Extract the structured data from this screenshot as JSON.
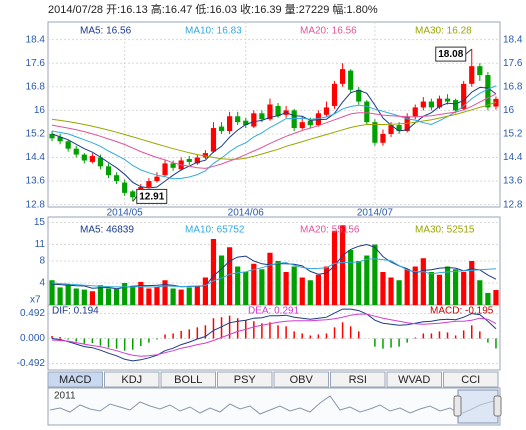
{
  "header": "2014/07/28 开:16.13 高:16.47 低:16.03 收:16.39 量:27229 幅:1.80%",
  "chart_data": [
    {
      "type": "candlestick",
      "categories": [
        null,
        null,
        null,
        null,
        null,
        null,
        null,
        null,
        null,
        "2014/05",
        null,
        null,
        null,
        null,
        null,
        null,
        null,
        null,
        null,
        null,
        null,
        null,
        null,
        null,
        "2014/06",
        null,
        null,
        null,
        null,
        null,
        null,
        null,
        null,
        null,
        null,
        null,
        null,
        null,
        null,
        null,
        "2014/07",
        null,
        null,
        null,
        null,
        null,
        null,
        null,
        null,
        null,
        null,
        null,
        null,
        null,
        null,
        null
      ],
      "open": [
        15.2,
        15.1,
        14.95,
        14.7,
        14.5,
        14.25,
        14.4,
        14.1,
        13.8,
        13.55,
        13.25,
        13.05,
        13.4,
        13.6,
        13.8,
        14.2,
        14.0,
        14.35,
        14.2,
        14.4,
        14.6,
        15.45,
        15.3,
        15.8,
        15.65,
        15.45,
        15.9,
        15.7,
        16.15,
        15.85,
        16.0,
        15.4,
        15.65,
        15.5,
        15.85,
        16.15,
        16.9,
        17.35,
        16.7,
        16.3,
        15.6,
        14.9,
        15.2,
        15.5,
        15.3,
        15.8,
        16.1,
        16.3,
        16.1,
        16.4,
        16.35,
        16.05,
        16.9,
        17.5,
        17.2,
        16.13
      ],
      "high": [
        15.3,
        15.2,
        15.0,
        14.8,
        14.55,
        14.55,
        14.5,
        14.2,
        13.9,
        13.65,
        13.3,
        13.5,
        13.7,
        13.9,
        14.3,
        14.3,
        14.4,
        14.45,
        14.5,
        14.65,
        15.6,
        15.6,
        15.95,
        15.95,
        15.75,
        16.0,
        16.0,
        16.4,
        16.25,
        16.15,
        16.05,
        15.8,
        15.75,
        16.0,
        16.3,
        17.0,
        17.6,
        17.4,
        16.8,
        16.35,
        15.7,
        15.35,
        15.6,
        15.6,
        15.9,
        16.2,
        16.45,
        16.4,
        16.5,
        16.55,
        16.4,
        17.0,
        18.08,
        17.6,
        17.3,
        16.47
      ],
      "low": [
        14.95,
        14.85,
        14.6,
        14.4,
        14.2,
        14.2,
        14.0,
        13.7,
        13.5,
        13.1,
        12.91,
        13.0,
        13.35,
        13.55,
        13.75,
        13.95,
        13.95,
        14.15,
        14.15,
        14.35,
        14.55,
        15.2,
        15.2,
        15.5,
        15.4,
        15.4,
        15.6,
        15.65,
        15.75,
        15.75,
        15.3,
        15.35,
        15.4,
        15.45,
        15.8,
        16.05,
        16.8,
        16.6,
        16.2,
        15.5,
        14.8,
        14.8,
        15.1,
        15.2,
        15.25,
        15.7,
        16.0,
        16.0,
        16.05,
        16.2,
        15.9,
        16.0,
        16.8,
        17.0,
        16.0,
        16.03
      ],
      "close": [
        15.05,
        14.95,
        14.7,
        14.5,
        14.3,
        14.45,
        14.1,
        13.8,
        13.6,
        13.2,
        13.05,
        13.4,
        13.6,
        13.75,
        14.2,
        14.05,
        14.3,
        14.25,
        14.4,
        14.55,
        15.4,
        15.3,
        15.8,
        15.6,
        15.5,
        15.9,
        15.7,
        16.2,
        15.8,
        16.0,
        15.4,
        15.6,
        15.5,
        15.9,
        16.1,
        16.9,
        17.4,
        16.7,
        16.3,
        15.6,
        14.9,
        15.2,
        15.5,
        15.3,
        15.8,
        16.1,
        16.3,
        16.1,
        16.4,
        16.3,
        16.0,
        16.9,
        17.5,
        17.2,
        16.1,
        16.39
      ],
      "up_color": "#ff0000",
      "down_color": "#00a000",
      "ylim": [
        12.72,
        19.0
      ],
      "yticks": [
        12.8,
        13.6,
        14.4,
        15.2,
        16.0,
        16.8,
        17.6,
        18.4
      ],
      "grid": true,
      "annotations": [
        "18.08",
        "12.91"
      ],
      "series": [
        {
          "name": "MA5: 16.56",
          "color": "#1a3a8a",
          "values": [
            15.2,
            15.1,
            15.0,
            14.85,
            14.7,
            14.58,
            14.41,
            14.23,
            14.05,
            13.83,
            13.55,
            13.41,
            13.37,
            13.4,
            13.6,
            13.8,
            13.98,
            14.11,
            14.24,
            14.31,
            14.59,
            14.78,
            15.09,
            15.33,
            15.52,
            15.62,
            15.66,
            15.76,
            15.82,
            15.92,
            15.82,
            15.8,
            15.66,
            15.68,
            15.7,
            15.9,
            16.28,
            16.6,
            16.68,
            16.58,
            16.18,
            15.74,
            15.5,
            15.3,
            15.34,
            15.58,
            15.8,
            15.92,
            16.14,
            16.24,
            16.22,
            16.34,
            16.62,
            16.78,
            16.76,
            16.56
          ]
        },
        {
          "name": "MA10: 16.83",
          "color": "#33aadd",
          "values": [
            15.3,
            15.25,
            15.2,
            15.1,
            15.0,
            14.9,
            14.78,
            14.62,
            14.48,
            14.33,
            14.13,
            13.98,
            13.88,
            13.8,
            13.75,
            13.68,
            13.69,
            13.74,
            13.82,
            13.95,
            14.2,
            14.38,
            14.6,
            14.78,
            14.9,
            15.1,
            15.24,
            15.42,
            15.56,
            15.72,
            15.72,
            15.73,
            15.7,
            15.72,
            15.78,
            15.88,
            16.05,
            16.13,
            16.18,
            16.14,
            16.04,
            15.97,
            15.89,
            15.81,
            15.71,
            15.67,
            15.58,
            15.52,
            15.65,
            15.79,
            15.95,
            16.15,
            16.4,
            16.58,
            16.72,
            16.83
          ]
        },
        {
          "name": "MA20: 16.56",
          "color": "#e0559a",
          "values": [
            15.5,
            15.45,
            15.4,
            15.34,
            15.28,
            15.2,
            15.12,
            15.03,
            14.94,
            14.84,
            14.72,
            14.6,
            14.5,
            14.4,
            14.32,
            14.22,
            14.15,
            14.1,
            14.05,
            14.03,
            14.1,
            14.18,
            14.28,
            14.38,
            14.5,
            14.62,
            14.74,
            14.88,
            15.0,
            15.12,
            15.22,
            15.32,
            15.4,
            15.48,
            15.58,
            15.68,
            15.78,
            15.88,
            15.92,
            15.92,
            15.88,
            15.84,
            15.82,
            15.8,
            15.78,
            15.78,
            15.8,
            15.82,
            15.86,
            15.9,
            15.94,
            16.02,
            16.14,
            16.28,
            16.42,
            16.56
          ]
        },
        {
          "name": "MA30: 16.28",
          "color": "#99a600",
          "values": [
            15.7,
            15.66,
            15.62,
            15.57,
            15.52,
            15.46,
            15.4,
            15.33,
            15.26,
            15.18,
            15.1,
            15.02,
            14.94,
            14.86,
            14.78,
            14.7,
            14.63,
            14.56,
            14.5,
            14.45,
            14.4,
            14.36,
            14.34,
            14.34,
            14.38,
            14.44,
            14.52,
            14.6,
            14.68,
            14.78,
            14.86,
            14.94,
            15.02,
            15.1,
            15.18,
            15.26,
            15.34,
            15.42,
            15.48,
            15.52,
            15.52,
            15.52,
            15.53,
            15.54,
            15.56,
            15.6,
            15.64,
            15.68,
            15.74,
            15.8,
            15.86,
            15.94,
            16.02,
            16.1,
            16.18,
            16.28
          ]
        }
      ]
    },
    {
      "type": "volume",
      "values": [
        4.5,
        3.2,
        3.8,
        3.0,
        2.8,
        2.5,
        3.6,
        3.0,
        2.9,
        4.0,
        3.5,
        4.2,
        3.0,
        3.3,
        4.5,
        3.0,
        2.8,
        3.2,
        3.5,
        5.0,
        12.0,
        9.0,
        10.5,
        7.0,
        6.0,
        7.5,
        6.5,
        9.5,
        8.0,
        6.0,
        7.0,
        5.0,
        4.5,
        5.5,
        7.0,
        13.5,
        14.5,
        10.0,
        8.0,
        9.0,
        11.0,
        6.0,
        5.0,
        4.5,
        6.5,
        7.0,
        8.5,
        6.0,
        5.5,
        7.0,
        6.5,
        6.0,
        8.0,
        4.5,
        2.2,
        2.7229
      ],
      "ylim": [
        0,
        16
      ],
      "yticks": [
        4,
        8,
        11,
        15
      ],
      "unit_label": "x7",
      "series": [
        {
          "name": "MA5: 46839",
          "color": "#1a3a8a",
          "values": [
            3.8,
            3.7,
            3.6,
            3.5,
            3.46,
            3.06,
            3.14,
            3.18,
            2.96,
            3.2,
            3.4,
            3.52,
            3.52,
            3.6,
            3.7,
            3.6,
            3.32,
            3.36,
            3.4,
            3.5,
            5.3,
            6.54,
            8.0,
            8.7,
            8.9,
            8.0,
            7.5,
            7.3,
            7.5,
            7.5,
            7.4,
            7.1,
            6.1,
            5.6,
            5.8,
            7.1,
            9.0,
            10.1,
            10.7,
            11.0,
            10.5,
            8.8,
            7.8,
            7.1,
            6.6,
            5.8,
            6.3,
            6.4,
            6.7,
            6.8,
            6.7,
            6.2,
            6.6,
            6.4,
            5.44,
            4.6839
          ]
        },
        {
          "name": "MA10: 65752",
          "color": "#33aadd",
          "values": [
            4.0,
            3.9,
            3.8,
            3.7,
            3.6,
            3.5,
            3.4,
            3.35,
            3.3,
            3.3,
            3.3,
            3.35,
            3.27,
            3.3,
            3.47,
            3.42,
            3.34,
            3.4,
            3.45,
            3.55,
            4.4,
            4.88,
            5.58,
            5.86,
            6.01,
            6.46,
            6.76,
            7.26,
            7.61,
            7.71,
            7.21,
            6.81,
            6.61,
            6.66,
            6.76,
            7.56,
            7.71,
            7.76,
            7.81,
            8.31,
            8.41,
            8.26,
            8.06,
            7.16,
            6.36,
            6.06,
            6.06,
            5.66,
            5.9,
            6.0,
            6.1,
            6.2,
            6.3,
            6.4,
            6.5,
            6.5752
          ]
        }
      ],
      "legend_only": [
        {
          "name": "MA20: 55156",
          "color": "#e0559a"
        },
        {
          "name": "MA30: 52515",
          "color": "#99a600"
        }
      ]
    },
    {
      "type": "macd",
      "values": [
        0.05,
        0.03,
        -0.02,
        -0.06,
        -0.1,
        -0.09,
        -0.14,
        -0.18,
        -0.2,
        -0.24,
        -0.22,
        -0.15,
        -0.08,
        -0.02,
        0.08,
        0.1,
        0.15,
        0.18,
        0.22,
        0.26,
        0.4,
        0.42,
        0.45,
        0.4,
        0.36,
        0.34,
        0.3,
        0.32,
        0.26,
        0.24,
        0.14,
        0.1,
        0.06,
        0.08,
        0.1,
        0.22,
        0.32,
        0.24,
        0.14,
        0.0,
        -0.16,
        -0.2,
        -0.18,
        -0.16,
        -0.08,
        0.02,
        0.1,
        0.1,
        0.14,
        0.12,
        0.06,
        0.16,
        0.26,
        0.14,
        -0.08,
        -0.195
      ],
      "value_name": "MACD: -0.195",
      "ylim": [
        -0.62,
        0.66
      ],
      "yticks": [
        0.492,
        {
          "value": 0,
          "label": "0.000"
        },
        -0.492
      ],
      "series": [
        {
          "name": "DIF: 0.194",
          "color": "#1a3a8a",
          "values": [
            0.0,
            -0.02,
            -0.06,
            -0.11,
            -0.16,
            -0.18,
            -0.23,
            -0.29,
            -0.34,
            -0.41,
            -0.44,
            -0.42,
            -0.38,
            -0.33,
            -0.24,
            -0.19,
            -0.12,
            -0.07,
            -0.01,
            0.04,
            0.16,
            0.23,
            0.31,
            0.34,
            0.36,
            0.4,
            0.41,
            0.45,
            0.45,
            0.46,
            0.42,
            0.4,
            0.38,
            0.4,
            0.42,
            0.5,
            0.58,
            0.58,
            0.55,
            0.48,
            0.36,
            0.3,
            0.28,
            0.26,
            0.27,
            0.3,
            0.33,
            0.34,
            0.37,
            0.38,
            0.37,
            0.42,
            0.49,
            0.47,
            0.34,
            0.194
          ]
        },
        {
          "name": "DEA: 0.291",
          "color": "#d23cd2",
          "values": [
            -0.03,
            -0.04,
            -0.05,
            -0.08,
            -0.11,
            -0.14,
            -0.16,
            -0.2,
            -0.24,
            -0.29,
            -0.33,
            -0.35,
            -0.34,
            -0.32,
            -0.28,
            -0.24,
            -0.19,
            -0.16,
            -0.12,
            -0.09,
            -0.04,
            0.02,
            0.08,
            0.14,
            0.18,
            0.23,
            0.26,
            0.29,
            0.32,
            0.34,
            0.35,
            0.35,
            0.35,
            0.36,
            0.37,
            0.39,
            0.42,
            0.46,
            0.48,
            0.48,
            0.44,
            0.4,
            0.37,
            0.34,
            0.31,
            0.29,
            0.28,
            0.29,
            0.3,
            0.32,
            0.34,
            0.34,
            0.36,
            0.4,
            0.38,
            0.291
          ]
        }
      ]
    }
  ],
  "tabs": [
    "MACD",
    "KDJ",
    "BOLL",
    "PSY",
    "OBV",
    "RSI",
    "WVAD",
    "CCI"
  ],
  "selected_tab": "MACD",
  "navigator": {
    "label": "2011"
  }
}
